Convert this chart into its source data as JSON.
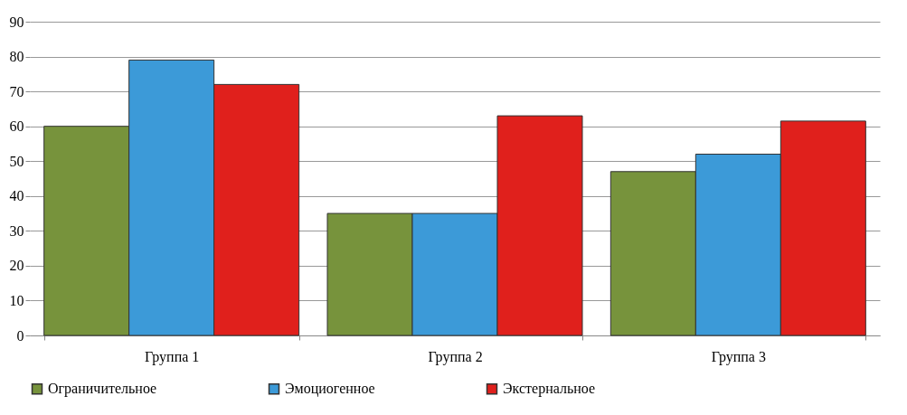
{
  "chart_data": {
    "type": "bar",
    "categories": [
      "Группа 1",
      "Группа 2",
      "Группа 3"
    ],
    "series": [
      {
        "name": "Ограничительное",
        "color": "#77933c",
        "values": [
          60,
          35,
          47
        ]
      },
      {
        "name": "Эмоциогенное",
        "color": "#3c9ad8",
        "values": [
          79,
          35,
          52
        ]
      },
      {
        "name": "Экстернальное",
        "color": "#e0201c",
        "values": [
          72,
          63,
          61.5
        ]
      }
    ],
    "ylim": [
      0,
      90
    ],
    "yticks": [
      0,
      10,
      20,
      30,
      40,
      50,
      60,
      70,
      80,
      90
    ],
    "grid": "y",
    "legend": "bottom"
  }
}
